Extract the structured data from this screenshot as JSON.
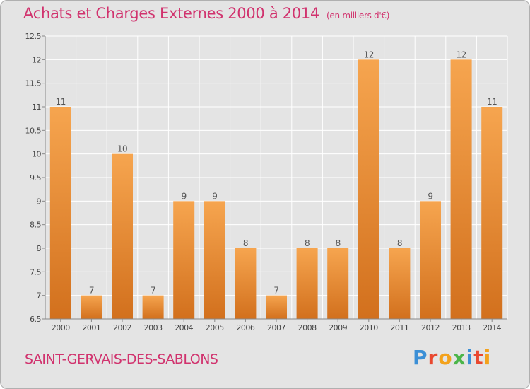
{
  "chart_data": {
    "type": "bar",
    "title": "Achats et Charges Externes 2000 à 2014",
    "subtitle": "(en milliers d'€)",
    "categories": [
      "2000",
      "2001",
      "2002",
      "2003",
      "2004",
      "2005",
      "2006",
      "2007",
      "2008",
      "2009",
      "2010",
      "2011",
      "2012",
      "2013",
      "2014"
    ],
    "values": [
      11,
      7,
      10,
      7,
      9,
      9,
      8,
      7,
      8,
      8,
      12,
      8,
      9,
      12,
      11
    ],
    "ylim": [
      6.5,
      12.5
    ],
    "yticks": [
      "6.5",
      "7",
      "7.5",
      "8",
      "8.5",
      "9",
      "9.5",
      "10",
      "10.5",
      "11",
      "11.5",
      "12",
      "12.5"
    ],
    "grid": true,
    "colors": {
      "bar_light": "#f6a54f",
      "bar_dark": "#d2701d",
      "label": "#555555",
      "title": "#d1336e"
    }
  },
  "commune": "SAINT-GERVAIS-DES-SABLONS",
  "logo": {
    "text": "Proxiti",
    "letters": [
      {
        "ch": "P",
        "color": "#3b8fd6"
      },
      {
        "ch": "r",
        "color": "#e9482f"
      },
      {
        "ch": "o",
        "color": "#f3a21c"
      },
      {
        "ch": "x",
        "color": "#4bb549"
      },
      {
        "ch": "i",
        "color": "#3b8fd6"
      },
      {
        "ch": "t",
        "color": "#e9482f"
      },
      {
        "ch": "i",
        "color": "#f3a21c"
      }
    ]
  }
}
